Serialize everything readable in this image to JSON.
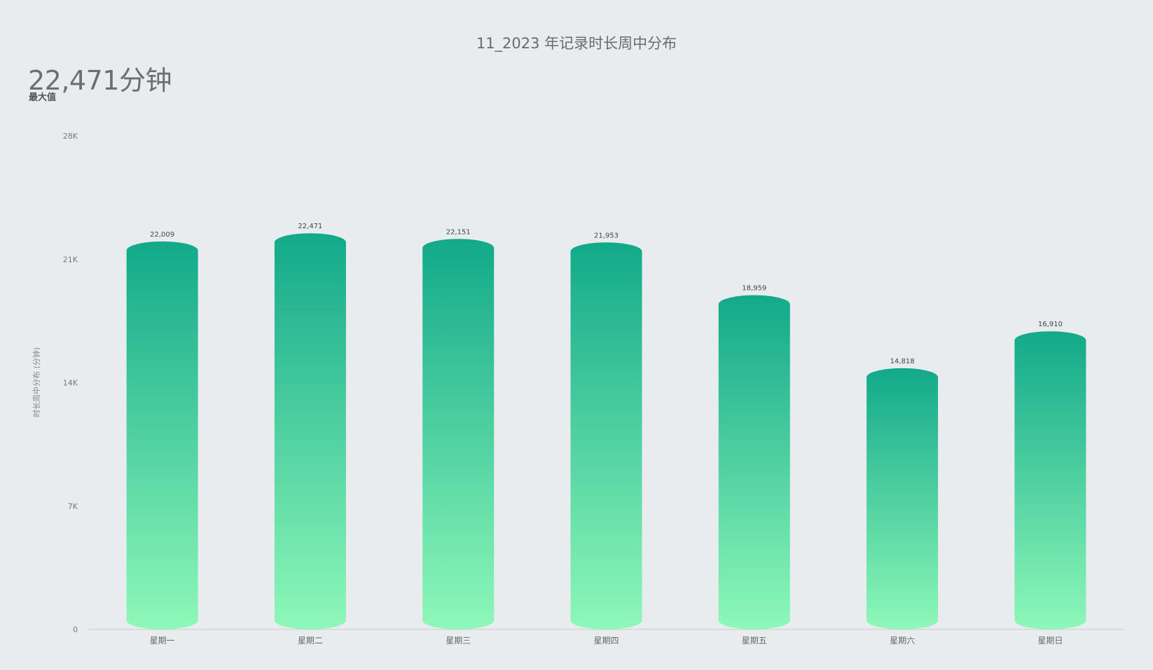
{
  "title": "11_2023 年记录时长周中分布",
  "kpi": {
    "value": "22,471分钟",
    "label": "最大值"
  },
  "colors": {
    "bar_top": "#12a98a",
    "bar_bottom": "#8ef8b8",
    "axis": "#c9ccce"
  },
  "chart_data": {
    "type": "bar",
    "title": "11_2023 年记录时长周中分布",
    "xlabel": "",
    "ylabel": "时长周中分布 (分钟)",
    "categories": [
      "星期一",
      "星期二",
      "星期三",
      "星期四",
      "星期五",
      "星期六",
      "星期日"
    ],
    "values": [
      22009,
      22471,
      22151,
      21953,
      18959,
      14818,
      16910
    ],
    "value_labels": [
      "22,009",
      "22,471",
      "22,151",
      "21,953",
      "18,959",
      "14,818",
      "16,910"
    ],
    "ylim": [
      0,
      28000
    ],
    "yticks": [
      0,
      7000,
      14000,
      21000,
      28000
    ],
    "ytick_labels": [
      "0",
      "7K",
      "14K",
      "21K",
      "28K"
    ],
    "grid": false,
    "legend": "none"
  }
}
